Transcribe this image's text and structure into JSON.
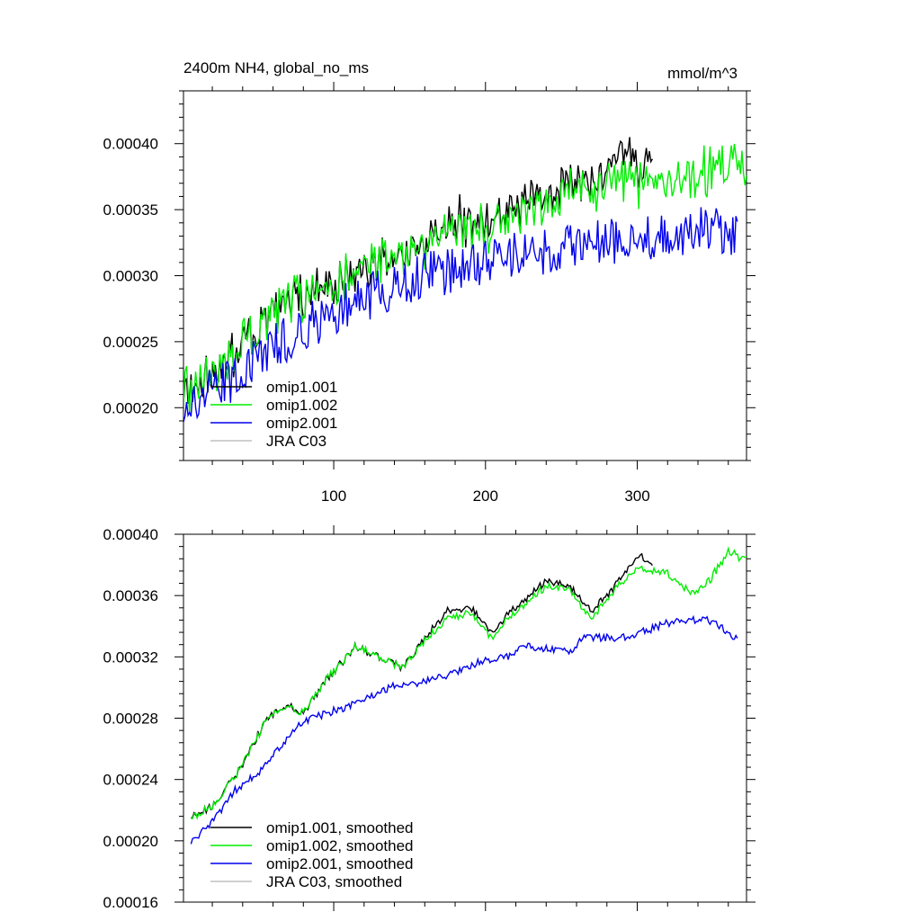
{
  "chart_data": [
    {
      "type": "line",
      "title": "2400m NH4, global_no_ms",
      "units": "mmol/m^3",
      "xlim": [
        1,
        372
      ],
      "ylim": [
        0.00016,
        0.00044
      ],
      "x_ticks": [
        100,
        200,
        300
      ],
      "y_ticks": [
        0.0002,
        0.00025,
        0.0003,
        0.00035,
        0.0004
      ],
      "y_tick_labels": [
        "0.00020",
        "0.00025",
        "0.00030",
        "0.00035",
        "0.00040"
      ],
      "x_tick_labels": [
        "100",
        "200",
        "300"
      ],
      "x_label_position": "bottom",
      "legend_position": "bottom-left",
      "legend": [
        "omip1.001",
        "omip1.002",
        "omip2.001",
        "JRA C03"
      ],
      "series": [
        {
          "name": "omip1.001",
          "color": "#000000",
          "x": [
            1,
            20,
            40,
            60,
            80,
            100,
            120,
            140,
            160,
            180,
            200,
            220,
            240,
            260,
            280,
            290,
            300,
            310
          ],
          "values": [
            0.000215,
            0.000225,
            0.00025,
            0.00027,
            0.000285,
            0.000295,
            0.000308,
            0.000315,
            0.000325,
            0.000345,
            0.00034,
            0.000355,
            0.000365,
            0.00037,
            0.000375,
            0.00039,
            0.00038,
            0.000385
          ]
        },
        {
          "name": "omip1.002",
          "color": "#00ee00",
          "x": [
            1,
            20,
            40,
            60,
            80,
            100,
            120,
            140,
            160,
            180,
            200,
            220,
            240,
            260,
            280,
            300,
            320,
            340,
            360,
            372
          ],
          "values": [
            0.000215,
            0.000225,
            0.00025,
            0.00027,
            0.000285,
            0.000295,
            0.000308,
            0.000315,
            0.000325,
            0.00034,
            0.000335,
            0.00035,
            0.00036,
            0.000365,
            0.000368,
            0.000372,
            0.00037,
            0.000378,
            0.000388,
            0.000383
          ]
        },
        {
          "name": "omip2.001",
          "color": "#0000ee",
          "x": [
            1,
            20,
            40,
            60,
            80,
            100,
            120,
            140,
            160,
            180,
            200,
            220,
            240,
            260,
            280,
            300,
            320,
            340,
            360,
            366
          ],
          "values": [
            0.000198,
            0.000212,
            0.000228,
            0.000245,
            0.00026,
            0.000272,
            0.000283,
            0.000292,
            0.0003,
            0.000305,
            0.00031,
            0.000316,
            0.000318,
            0.000322,
            0.000325,
            0.000326,
            0.00033,
            0.000335,
            0.000334,
            0.00033
          ]
        },
        {
          "name": "JRA C03",
          "color": "#c0c0c0",
          "x": [],
          "values": []
        }
      ]
    },
    {
      "type": "line",
      "title": "",
      "xlim": [
        1,
        372
      ],
      "ylim": [
        0.00016,
        0.0004
      ],
      "x_ticks": [
        100,
        200,
        300
      ],
      "y_ticks": [
        0.00016,
        0.0002,
        0.00024,
        0.00028,
        0.00032,
        0.00036,
        0.0004
      ],
      "y_tick_labels": [
        "0.00016",
        "0.00020",
        "0.00024",
        "0.00028",
        "0.00032",
        "0.00036",
        "0.00040"
      ],
      "legend_position": "bottom-left",
      "legend": [
        "omip1.001, smoothed",
        "omip1.002, smoothed",
        "omip2.001, smoothed",
        "JRA C03, smoothed"
      ],
      "series": [
        {
          "name": "omip1.001, smoothed",
          "color": "#000000",
          "x": [
            6,
            20,
            40,
            55,
            70,
            80,
            95,
            115,
            125,
            145,
            160,
            175,
            190,
            205,
            215,
            240,
            255,
            270,
            285,
            300,
            310
          ],
          "values": [
            0.000216,
            0.000222,
            0.00025,
            0.000278,
            0.00029,
            0.000283,
            0.000305,
            0.000327,
            0.000322,
            0.000313,
            0.000332,
            0.00035,
            0.000352,
            0.000335,
            0.000348,
            0.00037,
            0.000366,
            0.00035,
            0.000366,
            0.000386,
            0.000381
          ]
        },
        {
          "name": "omip1.002, smoothed",
          "color": "#00ee00",
          "x": [
            6,
            20,
            40,
            55,
            70,
            80,
            95,
            115,
            125,
            145,
            160,
            175,
            190,
            205,
            215,
            240,
            255,
            270,
            285,
            300,
            320,
            330,
            340,
            350,
            360,
            372
          ],
          "values": [
            0.000216,
            0.000222,
            0.00025,
            0.000278,
            0.00029,
            0.000283,
            0.000305,
            0.000327,
            0.000322,
            0.000313,
            0.00033,
            0.000346,
            0.000348,
            0.000332,
            0.000345,
            0.000366,
            0.000364,
            0.000345,
            0.000363,
            0.000378,
            0.000375,
            0.000365,
            0.000362,
            0.000373,
            0.000388,
            0.000384
          ]
        },
        {
          "name": "omip2.001, smoothed",
          "color": "#0000ee",
          "x": [
            6,
            20,
            35,
            50,
            65,
            80,
            95,
            110,
            125,
            140,
            160,
            180,
            200,
            215,
            225,
            240,
            255,
            265,
            285,
            300,
            320,
            345,
            355,
            366
          ],
          "values": [
            0.000199,
            0.000212,
            0.000233,
            0.000244,
            0.000262,
            0.000278,
            0.000283,
            0.000288,
            0.000295,
            0.000301,
            0.000304,
            0.00031,
            0.000318,
            0.00032,
            0.000328,
            0.000325,
            0.000323,
            0.000333,
            0.000332,
            0.000335,
            0.000342,
            0.000345,
            0.00034,
            0.000331
          ]
        },
        {
          "name": "JRA C03, smoothed",
          "color": "#c0c0c0",
          "x": [],
          "values": []
        }
      ]
    }
  ]
}
